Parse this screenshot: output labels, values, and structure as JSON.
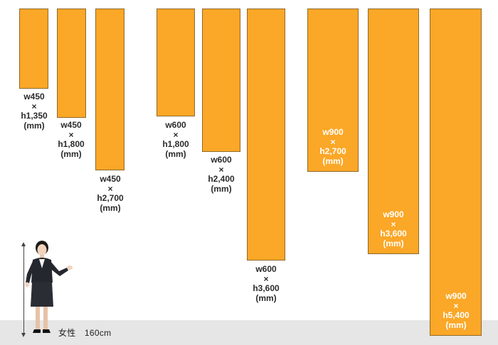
{
  "banners": [
    {
      "name": "banner-w450-h1350",
      "w": "w450",
      "x": "×",
      "h": "h1,350",
      "unit": "(mm)"
    },
    {
      "name": "banner-w450-h1800",
      "w": "w450",
      "x": "×",
      "h": "h1,800",
      "unit": "(mm)"
    },
    {
      "name": "banner-w450-h2700",
      "w": "w450",
      "x": "×",
      "h": "h2,700",
      "unit": "(mm)"
    },
    {
      "name": "banner-w600-h1800",
      "w": "w600",
      "x": "×",
      "h": "h1,800",
      "unit": "(mm)"
    },
    {
      "name": "banner-w600-h2400",
      "w": "w600",
      "x": "×",
      "h": "h2,400",
      "unit": "(mm)"
    },
    {
      "name": "banner-w600-h3600",
      "w": "w600",
      "x": "×",
      "h": "h3,600",
      "unit": "(mm)"
    },
    {
      "name": "banner-w900-h2700",
      "w": "w900",
      "x": "×",
      "h": "h2,700",
      "unit": "(mm)"
    },
    {
      "name": "banner-w900-h3600",
      "w": "w900",
      "x": "×",
      "h": "h3,600",
      "unit": "(mm)"
    },
    {
      "name": "banner-w900-h5400",
      "w": "w900",
      "x": "×",
      "h": "h5,400",
      "unit": "(mm)"
    }
  ],
  "reference": {
    "caption": "女性　160cm"
  },
  "colors": {
    "banner": "#fba727",
    "border": "#8f6b2c",
    "floor": "#e6e6e6"
  }
}
